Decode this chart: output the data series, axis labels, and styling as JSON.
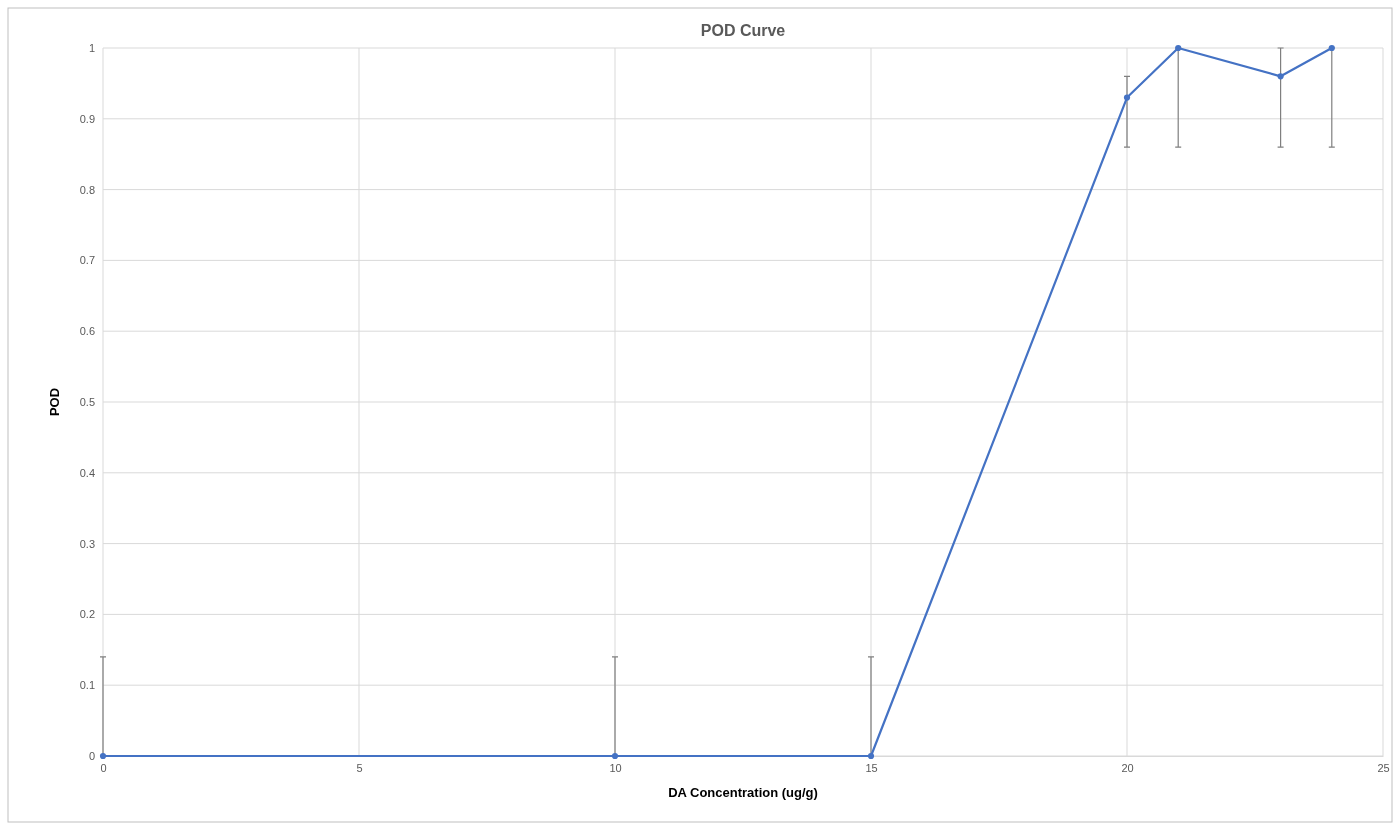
{
  "chart_data": {
    "type": "line",
    "title": "POD Curve",
    "xlabel": "DA Concentration (ug/g)",
    "ylabel": "POD",
    "x": [
      0,
      10,
      15,
      20,
      21,
      23,
      24
    ],
    "series": [
      {
        "color": "#4472c4",
        "values": [
          0,
          0,
          0,
          0.93,
          1,
          0.96,
          1
        ],
        "errors": [
          [
            0,
            0.14
          ],
          [
            0,
            0.14
          ],
          [
            0,
            0.14
          ],
          [
            0.86,
            0.96
          ],
          [
            0.86,
            1
          ],
          [
            0.86,
            1
          ],
          [
            0.86,
            1
          ]
        ]
      }
    ],
    "xlim": [
      0,
      25
    ],
    "xticks": [
      0,
      5,
      10,
      15,
      20,
      25
    ],
    "ylim": [
      0,
      1
    ],
    "yticks": [
      0,
      0.1,
      0.2,
      0.3,
      0.4,
      0.5,
      0.6,
      0.7,
      0.8,
      0.9,
      1
    ],
    "grid": true,
    "marker": "circle",
    "line_style": "solid"
  }
}
